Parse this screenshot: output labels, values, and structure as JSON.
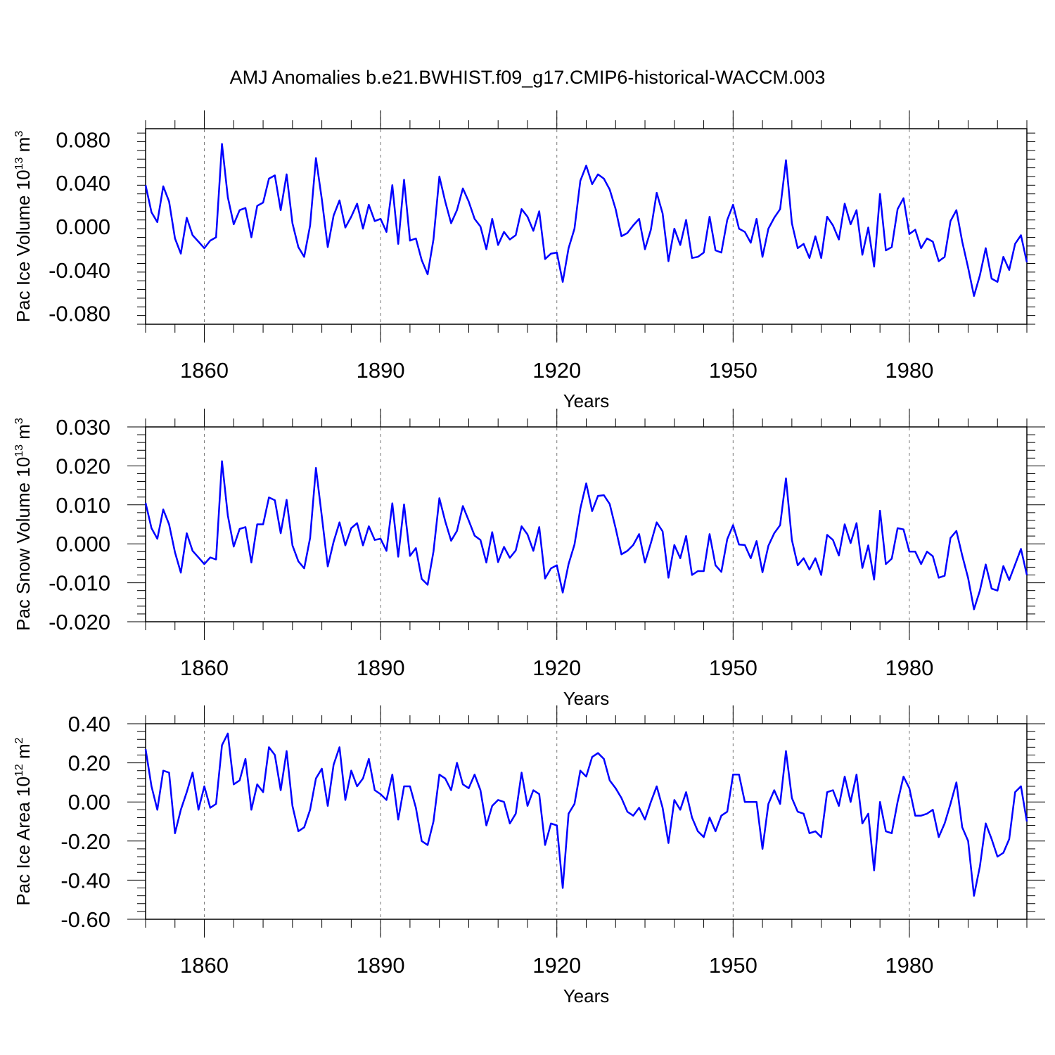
{
  "title": "AMJ Anomalies b.e21.BWHIST.f09_g17.CMIP6-historical-WACCM.003",
  "line_color": "#0000ff",
  "chart_data": [
    {
      "type": "line",
      "name": "pac-ice-volume",
      "ylabel": "Pac Ice Volume 10",
      "ylabel_exp": "13",
      "ylabel_unit": " m",
      "ylabel_unit_exp": "3",
      "xlabel": "Years",
      "xlim": [
        1850,
        2000
      ],
      "ylim": [
        -0.09,
        0.09
      ],
      "yticks": [
        -0.08,
        -0.04,
        0.0,
        0.04,
        0.08
      ],
      "ytick_labels": [
        "-0.080",
        "-0.040",
        "0.000",
        "0.040",
        "0.080"
      ],
      "xticks": [
        1860,
        1890,
        1920,
        1950,
        1980
      ],
      "xtick_labels": [
        "1860",
        "1890",
        "1920",
        "1950",
        "1980"
      ],
      "start_year": 1850,
      "values": [
        0.038,
        0.013,
        0.004,
        0.037,
        0.023,
        -0.011,
        -0.025,
        0.008,
        -0.008,
        -0.014,
        -0.02,
        -0.013,
        -0.01,
        0.076,
        0.027,
        0.002,
        0.015,
        0.017,
        -0.01,
        0.019,
        0.022,
        0.044,
        0.047,
        0.015,
        0.048,
        0.003,
        -0.019,
        -0.028,
        0.001,
        0.063,
        0.025,
        -0.019,
        0.01,
        0.024,
        -0.001,
        0.009,
        0.021,
        -0.002,
        0.02,
        0.005,
        0.007,
        -0.005,
        0.038,
        -0.016,
        0.043,
        -0.013,
        -0.011,
        -0.031,
        -0.044,
        -0.012,
        0.046,
        0.023,
        0.003,
        0.015,
        0.035,
        0.023,
        0.007,
        0.0,
        -0.021,
        0.007,
        -0.017,
        -0.005,
        -0.012,
        -0.008,
        0.016,
        0.009,
        -0.004,
        0.014,
        -0.03,
        -0.025,
        -0.024,
        -0.051,
        -0.02,
        -0.002,
        0.042,
        0.056,
        0.039,
        0.048,
        0.044,
        0.034,
        0.016,
        -0.009,
        -0.006,
        0.001,
        0.007,
        -0.021,
        -0.003,
        0.031,
        0.012,
        -0.032,
        -0.002,
        -0.017,
        0.006,
        -0.029,
        -0.028,
        -0.024,
        0.009,
        -0.022,
        -0.024,
        0.006,
        0.02,
        -0.002,
        -0.005,
        -0.015,
        0.007,
        -0.028,
        -0.002,
        0.008,
        0.016,
        0.061,
        0.003,
        -0.02,
        -0.016,
        -0.029,
        -0.009,
        -0.029,
        0.009,
        0.001,
        -0.012,
        0.021,
        0.002,
        0.015,
        -0.026,
        -0.001,
        -0.037,
        0.03,
        -0.022,
        -0.019,
        0.016,
        0.026,
        -0.007,
        -0.003,
        -0.02,
        -0.011,
        -0.014,
        -0.032,
        -0.028,
        0.005,
        0.015,
        -0.014,
        -0.038,
        -0.064,
        -0.045,
        -0.02,
        -0.048,
        -0.051,
        -0.028,
        -0.04,
        -0.016,
        -0.008,
        -0.033
      ]
    },
    {
      "type": "line",
      "name": "pac-snow-volume",
      "ylabel": "Pac Snow Volume 10",
      "ylabel_exp": "13",
      "ylabel_unit": " m",
      "ylabel_unit_exp": "3",
      "xlabel": "Years",
      "xlim": [
        1850,
        2000
      ],
      "ylim": [
        -0.02,
        0.03
      ],
      "yticks": [
        -0.02,
        -0.01,
        0.0,
        0.01,
        0.02,
        0.03
      ],
      "ytick_labels": [
        "-0.020",
        "-0.010",
        "0.000",
        "0.010",
        "0.020",
        "0.030"
      ],
      "xticks": [
        1860,
        1890,
        1920,
        1950,
        1980
      ],
      "xtick_labels": [
        "1860",
        "1890",
        "1920",
        "1950",
        "1980"
      ],
      "start_year": 1850,
      "values": [
        0.0105,
        0.004,
        0.0013,
        0.0088,
        0.005,
        -0.0022,
        -0.0074,
        0.0027,
        -0.0018,
        -0.0035,
        -0.0052,
        -0.0035,
        -0.004,
        0.0212,
        0.0073,
        -0.0007,
        0.0038,
        0.0043,
        -0.0048,
        0.005,
        0.005,
        0.0119,
        0.0112,
        0.0027,
        0.0113,
        -0.0004,
        -0.0045,
        -0.0063,
        0.0015,
        0.0195,
        0.007,
        -0.0058,
        0.0005,
        0.0055,
        -0.0004,
        0.004,
        0.0053,
        -0.0004,
        0.0045,
        0.001,
        0.0013,
        -0.0018,
        0.0104,
        -0.0033,
        0.0101,
        -0.0031,
        -0.0011,
        -0.009,
        -0.0105,
        -0.002,
        0.0117,
        0.0058,
        0.0008,
        0.0033,
        0.0097,
        0.006,
        0.0021,
        0.001,
        -0.0048,
        0.003,
        -0.0047,
        -0.0008,
        -0.0036,
        -0.0017,
        0.0045,
        0.0024,
        -0.0018,
        0.0043,
        -0.0089,
        -0.0063,
        -0.0055,
        -0.0125,
        -0.0052,
        -0.0002,
        0.009,
        0.0155,
        0.0084,
        0.0123,
        0.0125,
        0.0102,
        0.004,
        -0.0027,
        -0.0018,
        -0.0003,
        0.0025,
        -0.0048,
        0.0002,
        0.0055,
        0.0032,
        -0.0087,
        -0.0003,
        -0.0037,
        0.002,
        -0.008,
        -0.007,
        -0.007,
        0.0025,
        -0.0055,
        -0.0072,
        0.0012,
        0.0048,
        -0.0002,
        -0.0003,
        -0.0037,
        0.0007,
        -0.0073,
        -0.0005,
        0.0027,
        0.0048,
        0.0168,
        0.001,
        -0.0055,
        -0.0037,
        -0.0066,
        -0.0037,
        -0.008,
        0.0023,
        0.001,
        -0.003,
        0.005,
        0.0002,
        0.0053,
        -0.0062,
        -0.0004,
        -0.0092,
        0.0085,
        -0.0052,
        -0.0038,
        0.004,
        0.0037,
        -0.002,
        -0.002,
        -0.0052,
        -0.002,
        -0.0032,
        -0.0087,
        -0.0082,
        0.0015,
        0.0033,
        -0.003,
        -0.0088,
        -0.0168,
        -0.012,
        -0.0053,
        -0.0115,
        -0.012,
        -0.0057,
        -0.0093,
        -0.0053,
        -0.0013,
        -0.008
      ]
    },
    {
      "type": "line",
      "name": "pac-ice-area",
      "ylabel": "Pac Ice Area 10",
      "ylabel_exp": "12",
      "ylabel_unit": " m",
      "ylabel_unit_exp": "2",
      "xlabel": "Years",
      "xlim": [
        1850,
        2000
      ],
      "ylim": [
        -0.6,
        0.4
      ],
      "yticks": [
        -0.6,
        -0.4,
        -0.2,
        0.0,
        0.2,
        0.4
      ],
      "ytick_labels": [
        "-0.60",
        "-0.40",
        "-0.20",
        "0.00",
        "0.20",
        "0.40"
      ],
      "xticks": [
        1860,
        1890,
        1920,
        1950,
        1980
      ],
      "xtick_labels": [
        "1860",
        "1890",
        "1920",
        "1950",
        "1980"
      ],
      "start_year": 1850,
      "values": [
        0.27,
        0.08,
        -0.04,
        0.16,
        0.15,
        -0.16,
        -0.04,
        0.05,
        0.15,
        -0.04,
        0.08,
        -0.03,
        -0.01,
        0.29,
        0.35,
        0.09,
        0.11,
        0.22,
        -0.04,
        0.09,
        0.05,
        0.28,
        0.24,
        0.06,
        0.26,
        -0.02,
        -0.15,
        -0.13,
        -0.04,
        0.12,
        0.17,
        -0.02,
        0.19,
        0.28,
        0.01,
        0.16,
        0.08,
        0.12,
        0.22,
        0.06,
        0.04,
        0.01,
        0.14,
        -0.09,
        0.08,
        0.08,
        -0.03,
        -0.2,
        -0.22,
        -0.1,
        0.14,
        0.12,
        0.06,
        0.2,
        0.09,
        0.07,
        0.14,
        0.06,
        -0.12,
        -0.02,
        0.01,
        0.0,
        -0.11,
        -0.06,
        0.15,
        -0.02,
        0.06,
        0.04,
        -0.22,
        -0.11,
        -0.12,
        -0.44,
        -0.06,
        -0.01,
        0.16,
        0.13,
        0.23,
        0.25,
        0.22,
        0.11,
        0.07,
        0.02,
        -0.05,
        -0.07,
        -0.03,
        -0.09,
        0.0,
        0.08,
        -0.03,
        -0.21,
        0.01,
        -0.04,
        0.05,
        -0.08,
        -0.15,
        -0.18,
        -0.08,
        -0.15,
        -0.07,
        -0.05,
        0.14,
        0.14,
        0.0,
        0.0,
        0.0,
        -0.24,
        -0.01,
        0.06,
        -0.01,
        0.26,
        0.02,
        -0.05,
        -0.06,
        -0.16,
        -0.15,
        -0.18,
        0.05,
        0.06,
        -0.02,
        0.13,
        0.0,
        0.14,
        -0.11,
        -0.06,
        -0.35,
        0.0,
        -0.15,
        -0.16,
        0.0,
        0.13,
        0.07,
        -0.07,
        -0.07,
        -0.06,
        -0.04,
        -0.18,
        -0.11,
        -0.01,
        0.1,
        -0.13,
        -0.2,
        -0.48,
        -0.33,
        -0.11,
        -0.19,
        -0.28,
        -0.26,
        -0.19,
        0.05,
        0.08,
        -0.1
      ]
    }
  ]
}
